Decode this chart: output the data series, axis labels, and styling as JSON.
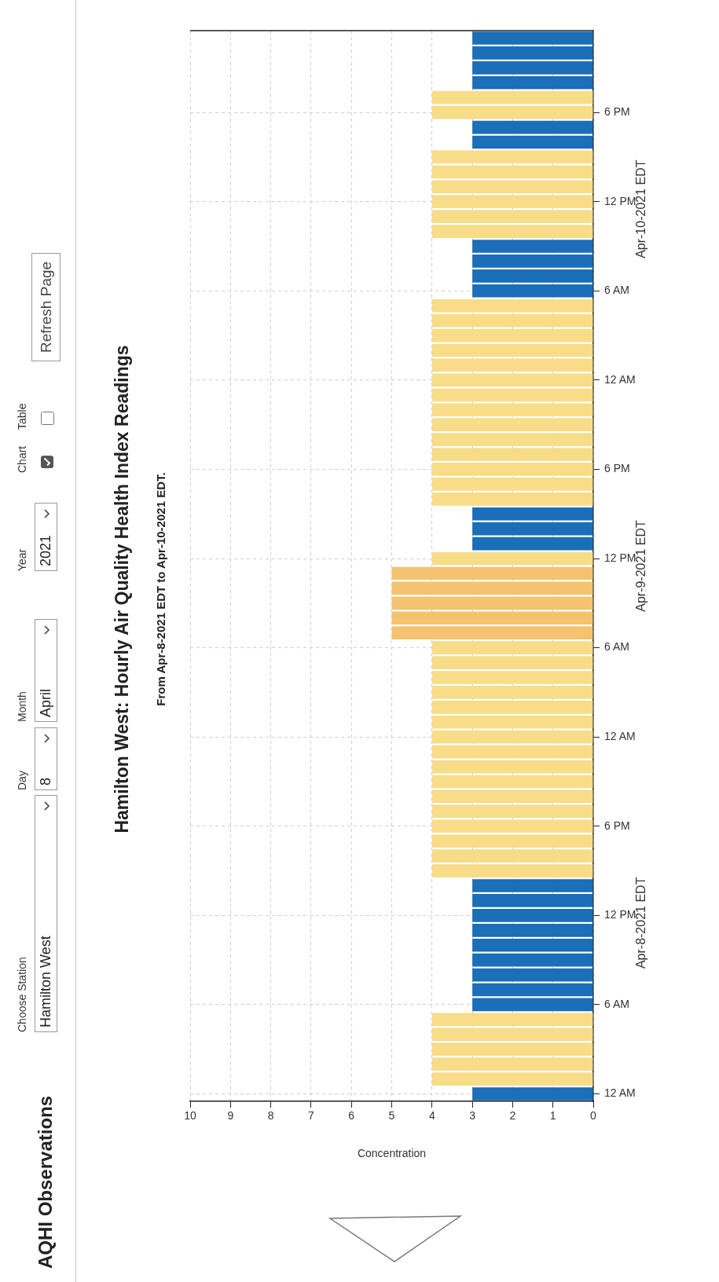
{
  "chart_data": {
    "type": "bar",
    "orientation": "horizontal",
    "title": "Hamilton West: Hourly Air Quality Health Index Readings",
    "subtitle": "From Apr-8-2021 EDT to Apr-10-2021 EDT.",
    "xlabel": "Concentration",
    "categories": [
      null,
      null,
      null,
      null,
      null,
      "6 PM",
      null,
      null,
      null,
      null,
      null,
      "12 PM",
      null,
      null,
      null,
      null,
      null,
      "6 AM",
      null,
      null,
      null,
      null,
      null,
      "12 AM",
      null,
      null,
      null,
      null,
      null,
      "6 PM",
      null,
      null,
      null,
      null,
      null,
      "12 PM",
      null,
      null,
      null,
      null,
      null,
      "6 AM",
      null,
      null,
      null,
      null,
      null,
      "12 AM",
      null,
      null,
      null,
      null,
      null,
      "6 PM",
      null,
      null,
      null,
      null,
      null,
      "12 PM",
      null,
      null,
      null,
      null,
      null,
      "6 AM",
      null,
      null,
      null,
      null,
      null,
      "12 AM"
    ],
    "values": [
      3,
      3,
      3,
      3,
      4,
      4,
      3,
      3,
      4,
      4,
      4,
      4,
      4,
      4,
      3,
      3,
      3,
      3,
      4,
      4,
      4,
      4,
      4,
      4,
      4,
      4,
      4,
      4,
      4,
      4,
      4,
      4,
      3,
      3,
      3,
      4,
      5,
      5,
      5,
      5,
      5,
      4,
      4,
      4,
      4,
      4,
      4,
      4,
      4,
      4,
      4,
      4,
      4,
      4,
      4,
      4,
      4,
      3,
      3,
      3,
      3,
      3,
      3,
      3,
      3,
      3,
      4,
      4,
      4,
      4,
      4,
      3
    ],
    "colors": [
      "#1b6eb8",
      "#1b6eb8",
      "#1b6eb8",
      "#1b6eb8",
      "#f8dc88",
      "#f8dc88",
      "#1b6eb8",
      "#1b6eb8",
      "#f8dc88",
      "#f8dc88",
      "#f8dc88",
      "#f8dc88",
      "#f8dc88",
      "#f8dc88",
      "#1b6eb8",
      "#1b6eb8",
      "#1b6eb8",
      "#1b6eb8",
      "#f8dc88",
      "#f8dc88",
      "#f8dc88",
      "#f8dc88",
      "#f8dc88",
      "#f8dc88",
      "#f8dc88",
      "#f8dc88",
      "#f8dc88",
      "#f8dc88",
      "#f8dc88",
      "#f8dc88",
      "#f8dc88",
      "#f8dc88",
      "#1b6eb8",
      "#1b6eb8",
      "#1b6eb8",
      "#f8dc88",
      "#f5c270",
      "#f5c270",
      "#f5c270",
      "#f5c270",
      "#f5c270",
      "#f8dc88",
      "#f8dc88",
      "#f8dc88",
      "#f8dc88",
      "#f8dc88",
      "#f8dc88",
      "#f8dc88",
      "#f8dc88",
      "#f8dc88",
      "#f8dc88",
      "#f8dc88",
      "#f8dc88",
      "#f8dc88",
      "#f8dc88",
      "#f8dc88",
      "#f8dc88",
      "#1b6eb8",
      "#1b6eb8",
      "#1b6eb8",
      "#1b6eb8",
      "#1b6eb8",
      "#1b6eb8",
      "#1b6eb8",
      "#1b6eb8",
      "#1b6eb8",
      "#f8dc88",
      "#f8dc88",
      "#f8dc88",
      "#f8dc88",
      "#f8dc88",
      "#1b6eb8"
    ],
    "xlim": [
      10,
      0
    ],
    "xticks": [
      10,
      9,
      8,
      7,
      6,
      5,
      4,
      3,
      2,
      1,
      0
    ],
    "grid": true,
    "annotations": [
      "AQHI Observations",
      "Choose Station",
      "Hamilton West",
      "Day",
      "8",
      "Month",
      "April",
      "Year",
      "2021",
      "Chart",
      "Table",
      "Refresh Page",
      "Apr-8-2021 EDT",
      "Apr-9-2021 EDT",
      "Apr-10-2021 EDT"
    ]
  }
}
